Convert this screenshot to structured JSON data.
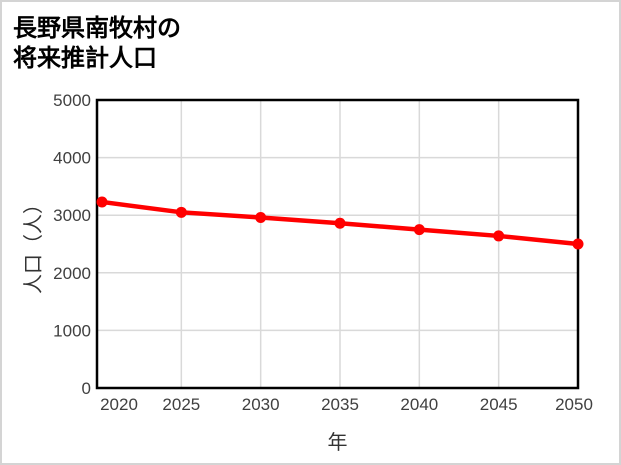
{
  "chart": {
    "title_line1": "長野県南牧村の",
    "title_line2": "将来推計人口",
    "x_axis_title": "年",
    "y_axis_title": "人口（人）"
  },
  "chart_data": {
    "type": "line",
    "title": "長野県南牧村の将来推計人口",
    "xlabel": "年",
    "ylabel": "人口（人）",
    "x": [
      2020,
      2025,
      2030,
      2035,
      2040,
      2045,
      2050
    ],
    "series": [
      {
        "name": "将来推計人口",
        "values": [
          3230,
          3050,
          2960,
          2860,
          2750,
          2640,
          2500
        ]
      }
    ],
    "x_ticks": [
      "2020",
      "2025",
      "2030",
      "2035",
      "2040",
      "2045",
      "2050"
    ],
    "y_ticks": [
      0,
      1000,
      2000,
      3000,
      4000,
      5000
    ],
    "xlim": [
      2019.7,
      2050
    ],
    "ylim": [
      0,
      5000
    ],
    "grid": true,
    "legend": "none",
    "marker": "circle",
    "style": {
      "line_color": "#ff0000",
      "gridline_color": "#d9d9d9",
      "plot_border_color": "#000000",
      "tick_label_color": "#404040",
      "background": "#ffffff",
      "canvas_border_color": "#d4d4d4"
    }
  }
}
